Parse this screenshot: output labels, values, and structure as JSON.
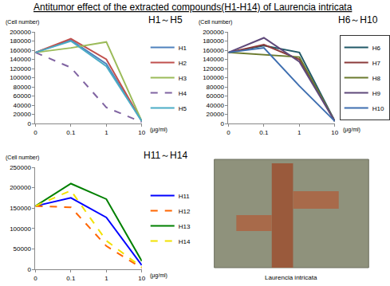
{
  "title": "Antitumor effect of the extracted compounds(H1-H14) of Laurencia intricata",
  "chart_data": [
    {
      "type": "line",
      "title": "H1～H5",
      "y_label": "(Cell number)",
      "x_label": "(μg/ml)",
      "categories": [
        "0",
        "0.1",
        "1",
        "10"
      ],
      "ylim": [
        0,
        200000
      ],
      "yticks": [
        0,
        20000,
        40000,
        60000,
        80000,
        100000,
        120000,
        140000,
        160000,
        180000,
        200000
      ],
      "grid": false,
      "legend": "right",
      "series": [
        {
          "name": "H1",
          "color": "#4f81bd",
          "line_style": "solid",
          "values": [
            155000,
            182000,
            130000,
            5000
          ]
        },
        {
          "name": "H2",
          "color": "#c0504d",
          "line_style": "solid",
          "values": [
            155000,
            185000,
            140000,
            5000
          ]
        },
        {
          "name": "H3",
          "color": "#9bbb59",
          "line_style": "solid",
          "values": [
            155000,
            165000,
            178000,
            5000
          ]
        },
        {
          "name": "H4",
          "color": "#8064a2",
          "line_style": "dash",
          "values": [
            155000,
            122000,
            35000,
            3000
          ]
        },
        {
          "name": "H5",
          "color": "#4bacc6",
          "line_style": "solid",
          "values": [
            155000,
            180000,
            125000,
            5000
          ]
        }
      ]
    },
    {
      "type": "line",
      "title": "H6～H10",
      "y_label": "(Cell number)",
      "x_label": "(μg/ml)",
      "categories": [
        "0",
        "0.1",
        "1",
        "10"
      ],
      "ylim": [
        0,
        200000
      ],
      "yticks": [
        0,
        20000,
        40000,
        60000,
        80000,
        100000,
        120000,
        140000,
        160000,
        180000,
        200000
      ],
      "grid": false,
      "legend": "right",
      "series": [
        {
          "name": "H6",
          "color": "#215968",
          "line_style": "solid",
          "values": [
            155000,
            170000,
            155000,
            5000
          ]
        },
        {
          "name": "H7",
          "color": "#8b3a3a",
          "line_style": "solid",
          "values": [
            155000,
            172000,
            140000,
            5000
          ]
        },
        {
          "name": "H8",
          "color": "#6b7a2e",
          "line_style": "solid",
          "values": [
            155000,
            150000,
            145000,
            5000
          ]
        },
        {
          "name": "H9",
          "color": "#5f497a",
          "line_style": "solid",
          "values": [
            155000,
            187000,
            135000,
            5000
          ]
        },
        {
          "name": "H10",
          "color": "#3f6fb0",
          "line_style": "solid",
          "values": [
            155000,
            165000,
            82000,
            5000
          ]
        }
      ]
    },
    {
      "type": "line",
      "title": "H11～H14",
      "y_label": "(Cell number)",
      "x_label": "(μg/ml)",
      "categories": [
        "0",
        "0.1",
        "1",
        "10"
      ],
      "ylim": [
        0,
        250000
      ],
      "yticks": [
        0,
        50000,
        100000,
        150000,
        200000,
        250000
      ],
      "grid": false,
      "legend": "right",
      "series": [
        {
          "name": "H11",
          "color": "#0000ff",
          "line_style": "solid",
          "values": [
            155000,
            175000,
            127000,
            10000
          ]
        },
        {
          "name": "H12",
          "color": "#ff6600",
          "line_style": "dash",
          "values": [
            155000,
            152000,
            57000,
            3000
          ]
        },
        {
          "name": "H13",
          "color": "#008000",
          "line_style": "solid",
          "values": [
            155000,
            210000,
            172000,
            20000
          ]
        },
        {
          "name": "H14",
          "color": "#f2e200",
          "line_style": "dash",
          "values": [
            155000,
            193000,
            70000,
            5000
          ]
        }
      ]
    }
  ],
  "image": {
    "caption": "Laurencia intricata"
  }
}
